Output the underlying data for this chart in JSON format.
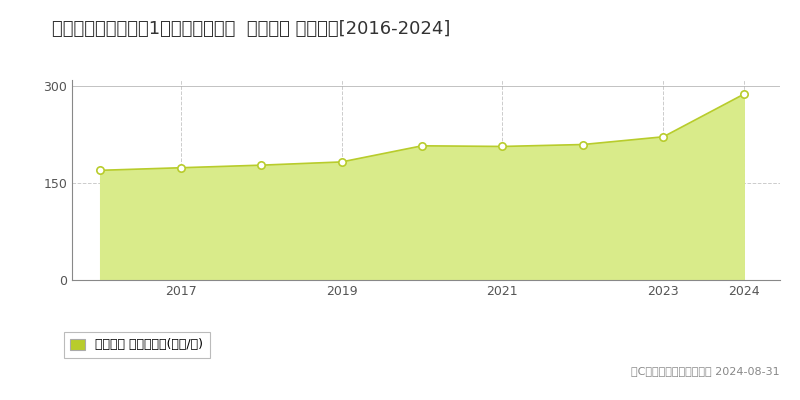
{
  "title": "東京都目黒区大岡山1丁目８６番１８  地価公示 地価推移[2016-2024]",
  "years": [
    2016,
    2017,
    2018,
    2019,
    2020,
    2021,
    2022,
    2023,
    2024
  ],
  "values": [
    170,
    174,
    178,
    183,
    208,
    207,
    210,
    222,
    288
  ],
  "line_color": "#b8cc2c",
  "fill_color": "#d9eb8a",
  "marker_facecolor": "#ffffff",
  "marker_edgecolor": "#b8cc2c",
  "background_color": "#ffffff",
  "plot_bg_color": "#ffffff",
  "yticks": [
    0,
    150,
    300
  ],
  "ylim": [
    0,
    310
  ],
  "xlim_start": 2015.65,
  "xlim_end": 2024.45,
  "xticks": [
    2017,
    2019,
    2021,
    2023,
    2024
  ],
  "grid_color": "#cccccc",
  "title_fontsize": 13,
  "legend_label": "地価公示 平均坤単価(万円/坤)",
  "copyright_text": "（C）土地価格ドットコム 2024-08-31",
  "legend_color": "#b8cc2c"
}
